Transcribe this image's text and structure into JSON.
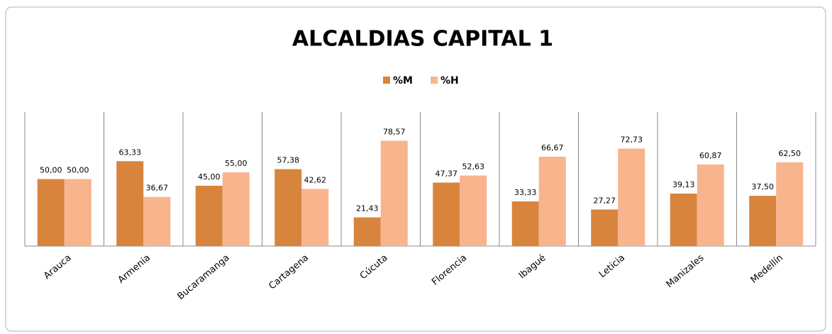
{
  "chart_data": {
    "type": "bar",
    "title": "ALCALDIAS CAPITAL 1",
    "categories": [
      "Arauca",
      "Armenia",
      "Bucaramanga",
      "Cartagena",
      "Cúcuta",
      "Florencia",
      "Ibagué",
      "Leticia",
      "Manizales",
      "Medellín"
    ],
    "series": [
      {
        "name": "%M",
        "color": "#d9843c",
        "values": [
          50.0,
          63.33,
          45.0,
          57.38,
          21.43,
          47.37,
          33.33,
          27.27,
          39.13,
          37.5
        ],
        "value_labels": [
          "50,00",
          "63,33",
          "45,00",
          "57,38",
          "21,43",
          "47,37",
          "33,33",
          "27,27",
          "39,13",
          "37,50"
        ]
      },
      {
        "name": "%H",
        "color": "#f8b48c",
        "values": [
          50.0,
          36.67,
          55.0,
          42.62,
          78.57,
          52.63,
          66.67,
          72.73,
          60.87,
          62.5
        ],
        "value_labels": [
          "50,00",
          "36,67",
          "55,00",
          "42,62",
          "78,57",
          "52,63",
          "66,67",
          "72,73",
          "60,87",
          "62,50"
        ]
      }
    ],
    "ylim": [
      0,
      100
    ],
    "legend": "top"
  }
}
